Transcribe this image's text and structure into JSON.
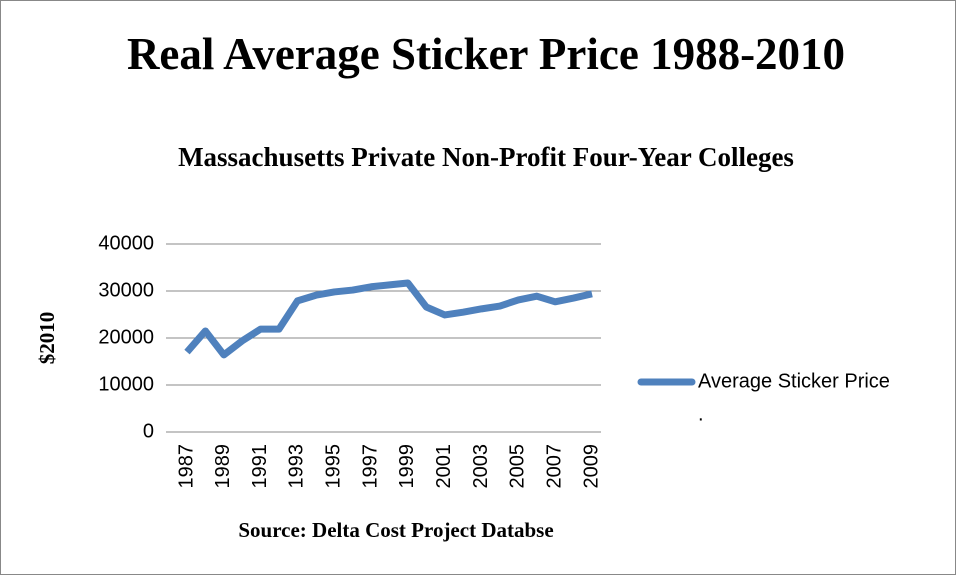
{
  "chart_data": {
    "type": "line",
    "title": "Real Average Sticker Price 1988-2010",
    "subtitle": "Massachusetts Private Non-Profit Four-Year Colleges",
    "y_label": "$2010",
    "x_label": "Source: Delta Cost Project Databse",
    "x": [
      1987,
      1988,
      1989,
      1990,
      1991,
      1992,
      1993,
      1994,
      1995,
      1996,
      1997,
      1998,
      1999,
      2000,
      2001,
      2002,
      2003,
      2004,
      2005,
      2006,
      2007,
      2008,
      2009
    ],
    "series": [
      {
        "name": "Average Sticker Price",
        "color": "#4f81bd",
        "values": [
          17000,
          21500,
          16400,
          19400,
          21900,
          21900,
          27900,
          29100,
          29800,
          30200,
          30900,
          31300,
          31700,
          26600,
          24900,
          25500,
          26200,
          26800,
          28100,
          28900,
          27700,
          28500,
          29400
        ]
      }
    ],
    "legend_note": ".",
    "xlim": [
      1987,
      2009
    ],
    "xticks": [
      1987,
      1989,
      1991,
      1993,
      1995,
      1997,
      1999,
      2001,
      2003,
      2005,
      2007,
      2009
    ],
    "ylim": [
      0,
      40000
    ],
    "yticks": [
      0,
      10000,
      20000,
      30000,
      40000
    ],
    "grid": true,
    "legend": "right"
  }
}
